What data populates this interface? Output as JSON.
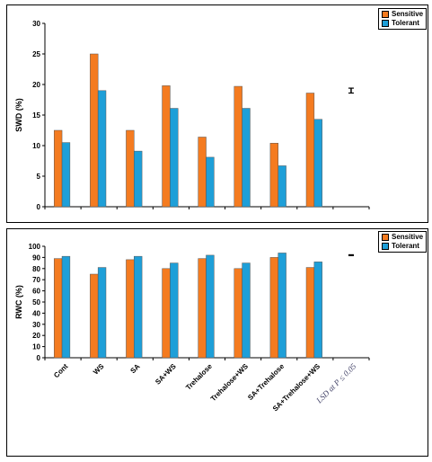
{
  "chart_data": [
    {
      "type": "bar",
      "ylabel": "SWD (%)",
      "ylim": [
        0,
        30
      ],
      "yticks": [
        "0",
        "5",
        "10",
        "15",
        "20",
        "25",
        "30"
      ],
      "categories": [
        "Cont",
        "WS",
        "SA",
        "SA+WS",
        "Trehalose",
        "Trehalose+WS",
        "SA+Trehalose",
        "SA+Trehalose+WS"
      ],
      "series": [
        {
          "name": "Sensitive",
          "color": "#f47b20",
          "values": [
            12.5,
            25,
            12.5,
            19.8,
            11.4,
            19.7,
            10.4,
            18.6
          ]
        },
        {
          "name": "Tolerant",
          "color": "#1e9fd8",
          "values": [
            10.5,
            19,
            9.1,
            16.1,
            8.1,
            16.1,
            6.7,
            14.3
          ]
        }
      ],
      "lsd": {
        "value": 19.0,
        "error": 0.4
      },
      "legend_position": "top-right"
    },
    {
      "type": "bar",
      "ylabel": "RWC (%)",
      "ylim": [
        0,
        100
      ],
      "yticks": [
        "0",
        "10",
        "20",
        "30",
        "40",
        "50",
        "60",
        "70",
        "80",
        "90",
        "100"
      ],
      "categories": [
        "Cont",
        "WS",
        "SA",
        "SA+WS",
        "Trehalose",
        "Trehalose+WS",
        "SA+Trehalose",
        "SA+Trehalose+WS"
      ],
      "series": [
        {
          "name": "Sensitive",
          "color": "#f47b20",
          "values": [
            89,
            75,
            88,
            80,
            89,
            80,
            90,
            81
          ]
        },
        {
          "name": "Tolerant",
          "color": "#1e9fd8",
          "values": [
            91,
            81,
            91,
            85,
            92,
            85,
            94,
            86
          ]
        }
      ],
      "lsd": {
        "value": 92,
        "error": 0.4,
        "label": "LSD at P ≤ 0.05"
      },
      "legend_position": "top-right"
    }
  ]
}
